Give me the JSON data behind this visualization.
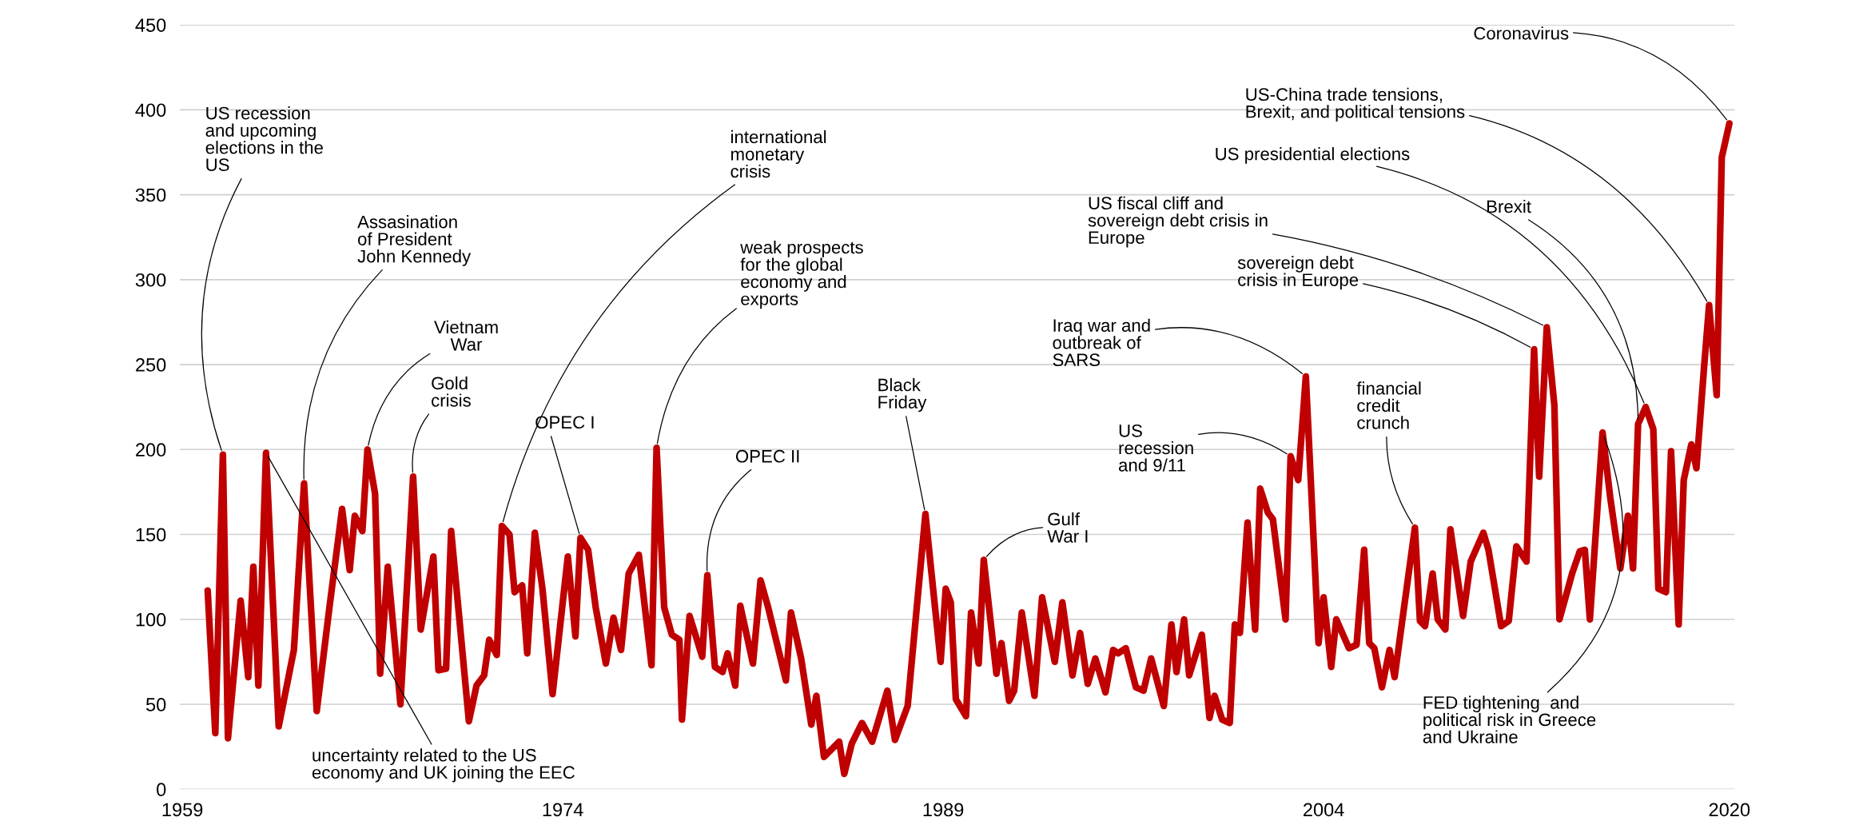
{
  "chart_data": {
    "type": "line",
    "x": [
      1960.0,
      1960.3,
      1960.6,
      1960.8,
      1961.3,
      1961.6,
      1961.8,
      1962.0,
      1962.3,
      1962.8,
      1963.4,
      1963.8,
      1964.3,
      1964.8,
      1965.3,
      1965.6,
      1965.8,
      1966.1,
      1966.3,
      1966.6,
      1966.8,
      1967.1,
      1967.6,
      1968.1,
      1968.4,
      1968.9,
      1969.1,
      1969.4,
      1969.6,
      1970.3,
      1970.6,
      1970.9,
      1971.1,
      1971.4,
      1971.6,
      1971.9,
      1972.1,
      1972.4,
      1972.6,
      1972.9,
      1973.2,
      1973.6,
      1974.2,
      1974.5,
      1974.7,
      1975.0,
      1975.3,
      1975.7,
      1976.0,
      1976.3,
      1976.6,
      1977.0,
      1977.5,
      1977.7,
      1978.0,
      1978.3,
      1978.6,
      1978.7,
      1979.0,
      1979.5,
      1979.7,
      1980.0,
      1980.3,
      1980.5,
      1980.8,
      1981.0,
      1981.5,
      1981.8,
      1982.1,
      1982.8,
      1983.0,
      1983.4,
      1983.8,
      1984.0,
      1984.3,
      1984.9,
      1985.1,
      1985.4,
      1985.8,
      1986.2,
      1986.8,
      1987.1,
      1987.6,
      1988.3,
      1988.9,
      1989.1,
      1989.3,
      1989.5,
      1989.9,
      1990.1,
      1990.4,
      1990.6,
      1991.1,
      1991.3,
      1991.6,
      1991.8,
      1992.1,
      1992.6,
      1992.9,
      1993.4,
      1993.7,
      1994.1,
      1994.4,
      1994.7,
      1995.0,
      1995.4,
      1995.7,
      1995.9,
      1996.2,
      1996.6,
      1996.9,
      1997.2,
      1997.7,
      1998.0,
      1998.2,
      1998.5,
      1998.7,
      1999.2,
      1999.5,
      1999.7,
      2000.0,
      2000.3,
      2000.5,
      2000.7,
      2001.0,
      2001.3,
      2001.5,
      2001.8,
      2002.0,
      2002.5,
      2002.7,
      2003.0,
      2003.3,
      2003.8,
      2004.0,
      2004.3,
      2004.5,
      2005.0,
      2005.3,
      2005.6,
      2005.8,
      2006.0,
      2006.3,
      2006.6,
      2006.8,
      2007.6,
      2007.8,
      2008.0,
      2008.3,
      2008.5,
      2008.8,
      2009.0,
      2009.5,
      2009.8,
      2010.3,
      2010.5,
      2011.0,
      2011.3,
      2011.6,
      2012.0,
      2012.3,
      2012.5,
      2012.8,
      2013.1,
      2013.3,
      2013.8,
      2014.1,
      2014.3,
      2014.5,
      2015.0,
      2015.3,
      2015.7,
      2016.0,
      2016.2,
      2016.4,
      2016.7,
      2017.0,
      2017.2,
      2017.5,
      2017.7,
      2018.0,
      2018.2,
      2018.5,
      2018.7,
      2019.0,
      2019.2,
      2019.5,
      2019.7,
      2020.0
    ],
    "series": [
      {
        "color": "#c00000",
        "values": [
          117,
          33,
          197,
          30,
          111,
          66,
          131,
          61,
          198,
          37,
          82,
          180,
          46,
          107,
          165,
          129,
          161,
          152,
          200,
          174,
          68,
          131,
          50,
          184,
          94,
          137,
          70,
          71,
          152,
          40,
          61,
          67,
          88,
          79,
          155,
          150,
          116,
          120,
          80,
          151,
          118,
          56,
          137,
          90,
          148,
          141,
          107,
          74,
          101,
          82,
          127,
          138,
          73,
          201,
          107,
          91,
          88,
          41,
          102,
          78,
          126,
          72,
          69,
          80,
          61,
          108,
          74,
          123,
          107,
          64,
          104,
          77,
          38,
          55,
          19,
          28,
          9,
          27,
          39,
          28,
          58,
          29,
          49,
          162,
          75,
          118,
          110,
          53,
          43,
          104,
          74,
          135,
          68,
          86,
          52,
          58,
          104,
          55,
          113,
          75,
          110,
          67,
          92,
          62,
          77,
          57,
          82,
          80,
          83,
          60,
          58,
          77,
          49,
          97,
          69,
          100,
          67,
          91,
          42,
          55,
          41,
          39,
          97,
          92,
          157,
          94,
          177,
          163,
          159,
          100,
          196,
          182,
          243,
          86,
          113,
          72,
          100,
          83,
          85,
          141,
          86,
          83,
          60,
          82,
          66,
          154,
          99,
          96,
          127,
          100,
          94,
          153,
          102,
          134,
          151,
          141,
          96,
          99,
          143,
          134,
          259,
          184,
          272,
          226,
          100,
          127,
          140,
          141,
          100,
          210,
          172,
          130,
          161,
          130,
          215,
          225,
          212,
          118,
          116,
          199,
          97,
          182,
          203,
          189,
          248,
          285,
          232,
          372,
          392
        ]
      }
    ],
    "xlim": [
      1958.9,
      2020.2
    ],
    "xticks": [
      1959,
      1974,
      1989,
      2004,
      2020
    ],
    "ylim": [
      0,
      450
    ],
    "yticks": [
      0,
      50,
      100,
      150,
      200,
      250,
      300,
      350,
      400,
      450
    ],
    "grid": "y",
    "line_style": "solid",
    "annotations": [
      {
        "text": "US recession\nand upcoming\nelections in the\nUS",
        "x": 1960.6,
        "y": 197
      },
      {
        "text": "uncertainty related to the US\neconomy and UK joining the EEC",
        "x": 1962.3,
        "y": 198
      },
      {
        "text": "Assasination\nof President\nJohn Kennedy",
        "x": 1963.8,
        "y": 180
      },
      {
        "text": "Vietnam\nWar",
        "x": 1966.3,
        "y": 200
      },
      {
        "text": "Gold\ncrisis",
        "x": 1968.1,
        "y": 184
      },
      {
        "text": "international\nmonetary\ncrisis",
        "x": 1971.6,
        "y": 155
      },
      {
        "text": "OPEC I",
        "x": 1974.7,
        "y": 148
      },
      {
        "text": "weak prospects\nfor the global\neconomy and\nexports",
        "x": 1977.7,
        "y": 201
      },
      {
        "text": "OPEC II",
        "x": 1979.7,
        "y": 126
      },
      {
        "text": "Black\nFriday",
        "x": 1988.3,
        "y": 162
      },
      {
        "text": "Gulf\nWar I",
        "x": 1990.6,
        "y": 135
      },
      {
        "text": "Iraq war and\noutbreak of\nSARS",
        "x": 2003.3,
        "y": 243
      },
      {
        "text": "US\nrecession\nand 9/11",
        "x": 2002.7,
        "y": 196
      },
      {
        "text": "financial\ncredit\ncrunch",
        "x": 2007.6,
        "y": 154
      },
      {
        "text": "sovereign debt\ncrisis in Europe",
        "x": 2012.3,
        "y": 259
      },
      {
        "text": "US fiscal cliff and\nsovereign debt crisis in\nEurope",
        "x": 2012.8,
        "y": 272
      },
      {
        "text": "Brexit",
        "x": 2016.4,
        "y": 215
      },
      {
        "text": "US presidential elections",
        "x": 2016.7,
        "y": 225
      },
      {
        "text": "US-China trade tensions,\nBrexit, and political tensions",
        "x": 2019.2,
        "y": 285
      },
      {
        "text": "Coronavirus",
        "x": 2020.0,
        "y": 392
      },
      {
        "text": "FED tightening  and\npolitical risk in Greece\nand Ukraine",
        "x": 2015.0,
        "y": 210
      }
    ]
  }
}
